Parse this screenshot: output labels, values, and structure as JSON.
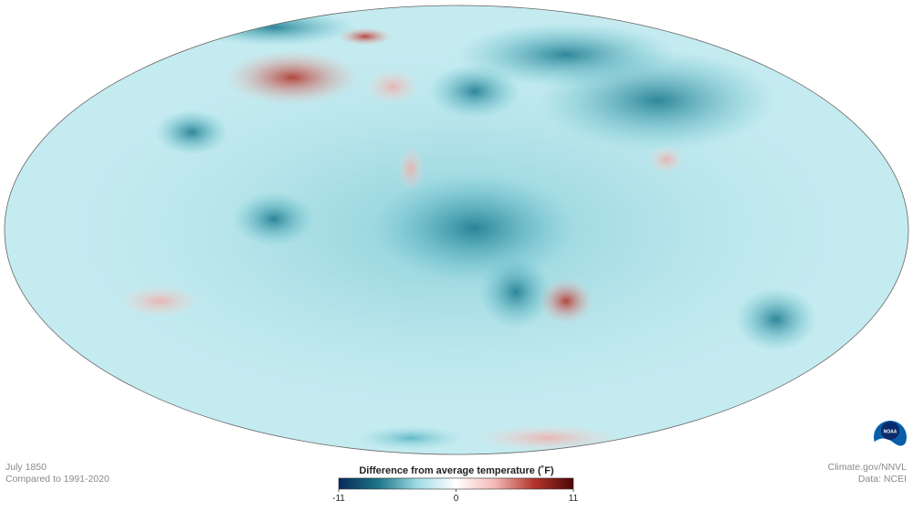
{
  "map": {
    "date": "July 1850",
    "baseline": "Compared to 1991-2020"
  },
  "legend": {
    "title": "Difference from average temperature  (˚F)",
    "ticks": [
      -11,
      0,
      11
    ],
    "colors": [
      "#0b2a5a",
      "#1a7488",
      "#9fdbe3",
      "#ffffff",
      "#f2b8b4",
      "#b2352c",
      "#4d0606"
    ]
  },
  "credits": {
    "source": "Climate.gov/NNVL",
    "data": "Data: NCEI"
  },
  "logo": {
    "text": "NOAA"
  }
}
